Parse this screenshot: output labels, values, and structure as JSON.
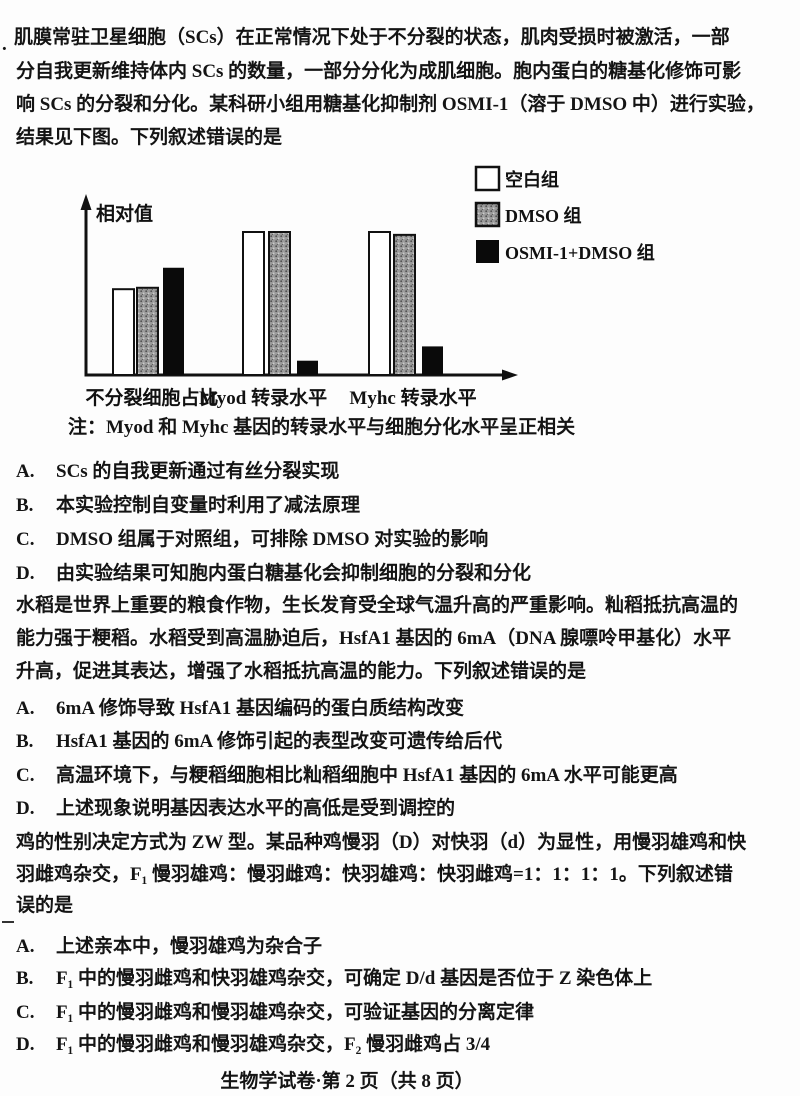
{
  "page": {
    "footer": "生物学试卷·第 2 页（共 8 页）"
  },
  "q1": {
    "marker": ".",
    "stem": [
      "肌膜常驻卫星细胞（SCs）在正常情况下处于不分裂的状态，肌肉受损时被激活，一部",
      "分自我更新维持体内 SCs 的数量，一部分分化为成肌细胞。胞内蛋白的糖基化修饰可影",
      "响 SCs 的分裂和分化。某科研小组用糖基化抑制剂 OSMI-1（溶于 DMSO 中）进行实验，",
      "结果见下图。下列叙述错误的是"
    ],
    "note": "注：Myod 和 Myhc 基因的转录水平与细胞分化水平呈正相关",
    "options": [
      {
        "label": "A.",
        "text": "SCs 的自我更新通过有丝分裂实现"
      },
      {
        "label": "B.",
        "text": "本实验控制自变量时利用了减法原理"
      },
      {
        "label": "C.",
        "text": "DMSO 组属于对照组，可排除 DMSO 对实验的影响"
      },
      {
        "label": "D.",
        "text": "由实验结果可知胞内蛋白糖基化会抑制细胞的分裂和分化"
      }
    ]
  },
  "chart_data": {
    "type": "bar",
    "title": "",
    "xlabel": "",
    "ylabel": "相对值",
    "categories": [
      "不分裂细胞占比",
      "Myod 转录水平",
      "Myhc 转录水平"
    ],
    "series": [
      {
        "name": "空白组",
        "style": "white",
        "color": "#ffffff",
        "values": [
          0.6,
          1.0,
          1.0
        ]
      },
      {
        "name": "DMSO 组",
        "style": "stipple",
        "color": "#969696",
        "values": [
          0.61,
          1.0,
          0.98
        ]
      },
      {
        "name": "OSMI-1+DMSO 组",
        "style": "black",
        "color": "#0a0a0a",
        "values": [
          0.75,
          0.1,
          0.2
        ]
      }
    ],
    "ylim": [
      0,
      1.1
    ],
    "grid": false,
    "legend_position": "upper-right",
    "note": "Myod 和 Myhc 基因的转录水平与细胞分化水平呈正相关"
  },
  "q2": {
    "stem": [
      "水稻是世界上重要的粮食作物，生长发育受全球气温升高的严重影响。籼稻抵抗高温的",
      "能力强于粳稻。水稻受到高温胁迫后，HsfA1 基因的 6mA（DNA 腺嘌呤甲基化）水平",
      "升高，促进其表达，增强了水稻抵抗高温的能力。下列叙述错误的是"
    ],
    "options": [
      {
        "label": "A.",
        "text": "6mA 修饰导致 HsfA1 基因编码的蛋白质结构改变"
      },
      {
        "label": "B.",
        "text": "HsfA1 基因的 6mA 修饰引起的表型改变可遗传给后代"
      },
      {
        "label": "C.",
        "text": "高温环境下，与粳稻细胞相比籼稻细胞中 HsfA1 基因的 6mA 水平可能更高"
      },
      {
        "label": "D.",
        "text": "上述现象说明基因表达水平的高低是受到调控的"
      }
    ]
  },
  "q3": {
    "stem": [
      "鸡的性别决定方式为 ZW 型。某品种鸡慢羽（D）对快羽（d）为显性，用慢羽雄鸡和快",
      "羽雌鸡杂交，F₁ 慢羽雄鸡：慢羽雌鸡：快羽雄鸡：快羽雌鸡=1：1：1：1。下列叙述错",
      "误的是"
    ],
    "options": [
      {
        "label": "A.",
        "text": "上述亲本中，慢羽雄鸡为杂合子"
      },
      {
        "label": "B.",
        "text": "F₁ 中的慢羽雌鸡和快羽雄鸡杂交，可确定 D/d 基因是否位于 Z 染色体上"
      },
      {
        "label": "C.",
        "text": "F₁ 中的慢羽雌鸡和慢羽雄鸡杂交，可验证基因的分离定律"
      },
      {
        "label": "D.",
        "text": "F₁ 中的慢羽雌鸡和慢羽雄鸡杂交，F₂ 慢羽雌鸡占 3/4"
      }
    ]
  }
}
